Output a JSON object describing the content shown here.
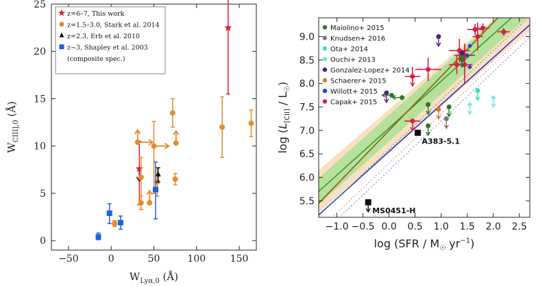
{
  "chart_data": [
    {
      "type": "scatter",
      "xlabel": "W_Lyα,0 (Å)",
      "xlabel_main": "W",
      "xlabel_sub": "Lyα,0",
      "xlabel_unit": " (Å)",
      "ylabel": "W_CIII],0 (Å)",
      "ylabel_main": "W",
      "ylabel_sub": "CIII],0",
      "ylabel_unit": " (Å)",
      "xlim": [
        -70,
        170
      ],
      "ylim": [
        -1,
        25
      ],
      "xticks": [
        -50,
        0,
        50,
        100,
        150
      ],
      "yticks": [
        0,
        5,
        10,
        15,
        20,
        25
      ],
      "legend": [
        {
          "label": "z=6–7, This work",
          "color": "#e02030",
          "marker": "star"
        },
        {
          "label": "z=1.5–3.0, Stark et al. 2014",
          "color": "#e88a2a",
          "marker": "circle"
        },
        {
          "label": "z=2.3, Erb et al. 2010",
          "color": "#111111",
          "marker": "triangle"
        },
        {
          "label": "z~3, Shapley et al. 2003",
          "color": "#1f5fe0",
          "marker": "square"
        },
        {
          "label": "(composite spec.)",
          "color": "",
          "marker": "none"
        }
      ],
      "series": [
        {
          "name": "This work",
          "color": "#e02030",
          "marker": "star",
          "points": [
            {
              "x": 137,
              "y": 22.5,
              "ylo": 15.5,
              "yhi": 25.5,
              "arrows": []
            },
            {
              "x": 33,
              "y": 7.6,
              "ylo": 3.8,
              "yhi": 10.5,
              "arrows": [
                "down"
              ]
            }
          ]
        },
        {
          "name": "Stark et al. 2014",
          "color": "#e88a2a",
          "marker": "circle",
          "points": [
            {
              "x": 130,
              "y": 12.0,
              "ylo": 8.8,
              "yhi": 15.2,
              "arrows": []
            },
            {
              "x": 164,
              "y": 12.4,
              "ylo": 11.0,
              "yhi": 13.8,
              "arrows": []
            },
            {
              "x": 72,
              "y": 13.5,
              "ylo": 12.0,
              "yhi": 15.0,
              "arrows": []
            },
            {
              "x": 76,
              "y": 10.3,
              "ylo": 10.3,
              "yhi": 10.3,
              "arrows": [
                "up"
              ]
            },
            {
              "x": 50,
              "y": 10.0,
              "ylo": 5.0,
              "yhi": 12.6,
              "arrows": [
                "right"
              ]
            },
            {
              "x": 31,
              "y": 10.4,
              "ylo": 10.4,
              "yhi": 10.4,
              "arrows": [
                "up",
                "right"
              ]
            },
            {
              "x": 35,
              "y": 6.7,
              "ylo": 3.3,
              "yhi": 8.8,
              "arrows": []
            },
            {
              "x": 35,
              "y": 4.0,
              "ylo": 3.3,
              "yhi": 4.7,
              "arrows": []
            },
            {
              "x": 45,
              "y": 4.0,
              "ylo": 4.0,
              "yhi": 4.0,
              "arrows": [
                "up"
              ]
            },
            {
              "x": 54,
              "y": 6.2,
              "ylo": 4.7,
              "yhi": 7.7,
              "arrows": []
            },
            {
              "x": 75,
              "y": 6.5,
              "ylo": 5.9,
              "yhi": 7.1,
              "arrows": []
            },
            {
              "x": 4,
              "y": 1.8,
              "ylo": 1.5,
              "yhi": 2.1,
              "arrows": []
            }
          ]
        },
        {
          "name": "Erb et al. 2010",
          "color": "#111111",
          "marker": "triangle",
          "points": [
            {
              "x": 55,
              "y": 7.0,
              "ylo": 6.2,
              "yhi": 7.7,
              "arrows": []
            }
          ]
        },
        {
          "name": "Shapley et al. 2003",
          "color": "#1f5fe0",
          "marker": "square",
          "points": [
            {
              "x": -15,
              "y": 0.4,
              "ylo": 0.1,
              "yhi": 0.8,
              "arrows": []
            },
            {
              "x": -2,
              "y": 2.9,
              "ylo": 1.8,
              "yhi": 3.9,
              "arrows": []
            },
            {
              "x": 11,
              "y": 1.9,
              "ylo": 1.2,
              "yhi": 2.6,
              "arrows": []
            },
            {
              "x": 52,
              "y": 5.4,
              "ylo": 2.3,
              "yhi": 8.3,
              "arrows": []
            }
          ]
        }
      ]
    },
    {
      "type": "scatter",
      "xlabel": "log (SFR / M☉ yr⁻¹)",
      "ylabel": "log (L[CII] / L☉)",
      "xlabel_text": "log (SFR / M",
      "xlabel_sun": "☉",
      "xlabel_tail": " yr",
      "xlabel_exp": "−1",
      "xlabel_close": ")",
      "ylabel_text": "log (",
      "ylabel_L": "L",
      "ylabel_sub": "[CII]",
      "ylabel_mid": " / L",
      "ylabel_sun": "☉",
      "ylabel_close": ")",
      "xlim": [
        -1.35,
        2.7
      ],
      "ylim": [
        5.15,
        9.4
      ],
      "xticks": [
        -1.0,
        -0.5,
        0.0,
        0.5,
        1.0,
        1.5,
        2.0,
        2.5
      ],
      "xtick_labels": [
        "−1.0",
        "−0.5",
        "0.0",
        "0.5",
        "1.0",
        "1.5",
        "2.0",
        "2.5"
      ],
      "yticks": [
        5.5,
        6.0,
        6.5,
        7.0,
        7.5,
        8.0,
        8.5,
        9.0
      ],
      "ytick_labels": [
        "5.5",
        "6.0",
        "6.5",
        "7.0",
        "7.5",
        "8.0",
        "8.5",
        "9.0"
      ],
      "legend": [
        {
          "label": "Maiolino+ 2015",
          "color": "#2a7a22"
        },
        {
          "label": "Knudsen+ 2016",
          "color": "#777777"
        },
        {
          "label": "Ota+ 2014",
          "color": "#3ee0a8"
        },
        {
          "label": "Ouchi+ 2013",
          "color": "#70e8d8"
        },
        {
          "label": "Gonzalez-Lopez+ 2014",
          "color": "#4b1f80"
        },
        {
          "label": "Schaerer+ 2015",
          "color": "#e0742a"
        },
        {
          "label": "Willott+ 2015",
          "color": "#2040e0"
        },
        {
          "label": "Capak+ 2015",
          "color": "#d81c40"
        }
      ],
      "relations": [
        {
          "name": "green-band",
          "color": "#7ee07e",
          "slope": 1.0,
          "intercept": 7.05,
          "width": 0.28,
          "style": "band"
        },
        {
          "name": "orange-band",
          "color": "#f5c590",
          "slope": 0.96,
          "intercept": 7.0,
          "width": 0.45,
          "style": "band"
        },
        {
          "name": "green-line",
          "color": "#2fa02f",
          "slope": 1.0,
          "intercept": 7.05,
          "style": "solid"
        },
        {
          "name": "brown-line",
          "color": "#8a5a10",
          "slope": 1.15,
          "intercept": 7.0,
          "style": "solid"
        },
        {
          "name": "blue-line",
          "color": "#2a30c8",
          "slope": 1.0,
          "intercept": 6.55,
          "style": "solid"
        },
        {
          "name": "dotted-green",
          "color": "#40b040",
          "slope": 1.05,
          "intercept": 6.6,
          "style": "dotted"
        },
        {
          "name": "dotted-pink",
          "color": "#e08a9a",
          "slope": 1.05,
          "intercept": 6.3,
          "style": "dotted"
        },
        {
          "name": "dotted-blue",
          "color": "#8080d8",
          "slope": 1.05,
          "intercept": 6.15,
          "style": "dotted"
        }
      ],
      "points": [
        {
          "x": 1.65,
          "y": 9.15,
          "color": "#d81c40",
          "marker": "circle",
          "xerr": 0.15,
          "yerr": 0.12
        },
        {
          "x": 1.8,
          "y": 9.18,
          "color": "#d81c40",
          "marker": "circle",
          "xerr": 0.12,
          "yerr": 0.1
        },
        {
          "x": 2.2,
          "y": 9.1,
          "color": "#d81c40",
          "marker": "circle",
          "xerr": 0.12,
          "yerr": 0.08
        },
        {
          "x": 1.35,
          "y": 8.7,
          "color": "#d81c40",
          "marker": "circle",
          "xerr": 0.2,
          "yerr": 0.25
        },
        {
          "x": 1.45,
          "y": 8.6,
          "color": "#d81c40",
          "marker": "circle",
          "xerr": 0.2,
          "yerr": 0.25
        },
        {
          "x": 1.45,
          "y": 8.4,
          "color": "#d81c40",
          "marker": "circle",
          "xerr": 0.15,
          "yerr": 0.4
        },
        {
          "x": 1.3,
          "y": 8.4,
          "color": "#d81c40",
          "marker": "circle",
          "xerr": 0.15,
          "yerr": 0.2
        },
        {
          "x": 0.75,
          "y": 8.3,
          "color": "#d81c40",
          "marker": "circle",
          "xerr": 0.25,
          "yerr": 0.25
        },
        {
          "x": 0.45,
          "y": 8.15,
          "color": "#d81c40",
          "marker": "circle",
          "xerr": 0.15,
          "yerr": 0.2,
          "uplimit": true
        },
        {
          "x": 1.7,
          "y": 9.0,
          "color": "#d81c40",
          "marker": "circle",
          "xerr": 0.1,
          "yerr": 0.3
        },
        {
          "x": 0.45,
          "y": 7.2,
          "color": "#d81c40",
          "marker": "circle",
          "xerr": 0.15,
          "yerr": 0.0,
          "uplimit": true
        },
        {
          "x": 1.5,
          "y": 8.6,
          "color": "#2040e0",
          "marker": "diamond",
          "xerr": 0.0,
          "yerr": 0.0
        },
        {
          "x": 1.55,
          "y": 8.35,
          "color": "#2040e0",
          "marker": "diamond",
          "xerr": 0.0,
          "yerr": 0.0
        },
        {
          "x": 1.55,
          "y": 8.8,
          "color": "#2040e0",
          "marker": "diamond",
          "xerr": 0.0,
          "yerr": 0.0
        },
        {
          "x": 0.95,
          "y": 9.0,
          "color": "#4b1f80",
          "marker": "circle",
          "xerr": 0.0,
          "yerr": 0.0,
          "uplimit": true
        },
        {
          "x": 1.4,
          "y": 8.65,
          "color": "#4b1f80",
          "marker": "circle",
          "xerr": 0.0,
          "yerr": 0.0,
          "uplimit": true
        },
        {
          "x": -0.05,
          "y": 7.8,
          "color": "#4b1f80",
          "marker": "circle",
          "xerr": 0.0,
          "yerr": 0.0,
          "uplimit": true
        },
        {
          "x": 0.05,
          "y": 7.75,
          "color": "#2a7a22",
          "marker": "circle",
          "xerr": 0.0,
          "yerr": 0.0,
          "leftlimit": true
        },
        {
          "x": 0.25,
          "y": 7.7,
          "color": "#2a7a22",
          "marker": "circle",
          "xerr": 0.0,
          "yerr": 0.0,
          "leftlimit": true
        },
        {
          "x": 0.75,
          "y": 7.55,
          "color": "#2a7a22",
          "marker": "circle",
          "xerr": 0.0,
          "yerr": 0.0,
          "uplimit": true
        },
        {
          "x": 0.75,
          "y": 7.1,
          "color": "#2a7a22",
          "marker": "circle",
          "xerr": 0.0,
          "yerr": 0.0,
          "uplimit": true
        },
        {
          "x": 1.15,
          "y": 7.5,
          "color": "#2a7a22",
          "marker": "circle",
          "xerr": 0.0,
          "yerr": 0.0,
          "uplimit": true
        },
        {
          "x": 1.4,
          "y": 8.55,
          "color": "#2a7a22",
          "marker": "circle",
          "xerr": 0.0,
          "yerr": 0.0,
          "uplimit": true
        },
        {
          "x": 1.1,
          "y": 7.25,
          "color": "#777777",
          "marker": "circle",
          "xerr": 0.0,
          "yerr": 0.0,
          "uplimit": true
        },
        {
          "x": 0.95,
          "y": 7.45,
          "color": "#e0742a",
          "marker": "circle",
          "xerr": 0.0,
          "yerr": 0.0,
          "uplimit": true
        },
        {
          "x": 1.7,
          "y": 7.85,
          "color": "#3ee0a8",
          "marker": "circle",
          "xerr": 0.0,
          "yerr": 0.0,
          "uplimit": true
        },
        {
          "x": 1.55,
          "y": 7.55,
          "color": "#70e8d8",
          "marker": "diamond",
          "xerr": 0.0,
          "yerr": 0.0,
          "uplimit": true
        },
        {
          "x": 2.0,
          "y": 7.7,
          "color": "#70e8d8",
          "marker": "diamond",
          "xerr": 0.0,
          "yerr": 0.0,
          "uplimit": true
        },
        {
          "x": 0.55,
          "y": 6.95,
          "color": "#111111",
          "marker": "square",
          "xerr": 0.0,
          "yerr": 0.0,
          "label": "A383-5.1"
        },
        {
          "x": -0.4,
          "y": 5.47,
          "color": "#111111",
          "marker": "square",
          "xerr": 0.0,
          "yerr": 0.0,
          "uplimit": true,
          "label": "MS0451-H"
        }
      ]
    }
  ]
}
